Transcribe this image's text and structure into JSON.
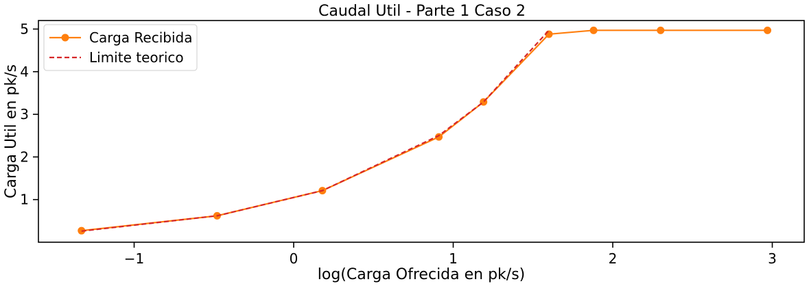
{
  "chart_data": {
    "type": "line",
    "title": "Caudal Util - Parte 1 Caso 2",
    "xlabel": "log(Carga Ofrecida en pk/s)",
    "ylabel": "Carga Util en pk/s",
    "xlim": [
      -1.6,
      3.2
    ],
    "ylim": [
      0.0,
      5.2
    ],
    "xticks": [
      -1,
      0,
      1,
      2,
      3
    ],
    "xtick_labels": [
      "−1",
      "0",
      "1",
      "2",
      "3"
    ],
    "yticks": [
      1,
      2,
      3,
      4,
      5
    ],
    "ytick_labels": [
      "1",
      "2",
      "3",
      "4",
      "5"
    ],
    "grid": false,
    "legend_position": "top-left",
    "series": [
      {
        "name": "Carga Recibida",
        "style": "solid-marker",
        "color": "#ff7f0e",
        "x": [
          -1.33,
          -0.48,
          0.18,
          0.91,
          1.19,
          1.6,
          1.88,
          2.3,
          2.97
        ],
        "y": [
          0.27,
          0.62,
          1.21,
          2.47,
          3.29,
          4.88,
          4.97,
          4.97,
          4.97
        ]
      },
      {
        "name": "Limite teorico",
        "style": "dashed",
        "color": "#d62728",
        "x": [
          -1.33,
          -0.48,
          0.18,
          0.91,
          1.19,
          1.6
        ],
        "y": [
          0.26,
          0.62,
          1.21,
          2.5,
          3.29,
          4.97
        ]
      }
    ]
  }
}
